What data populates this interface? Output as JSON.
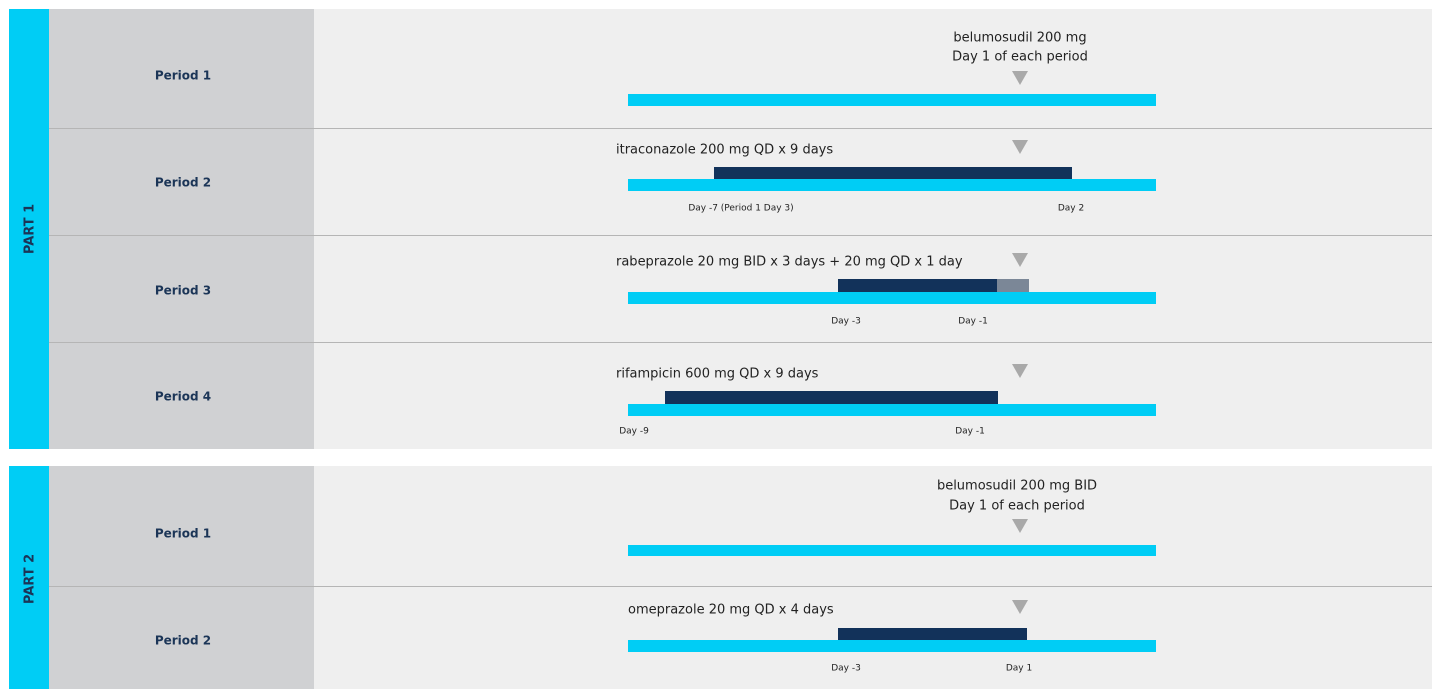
{
  "parts": [
    {
      "label": "PART 1",
      "periods": [
        {
          "label": "Period 1",
          "notes": [
            "belumosudil 200 mg",
            "Day 1 of each period"
          ],
          "day_labels": []
        },
        {
          "label": "Period 2",
          "notes": [
            "itraconazole 200 mg QD x 9 days"
          ],
          "day_labels": [
            "Day -7 (Period 1 Day 3)",
            "Day 2"
          ]
        },
        {
          "label": "Period 3",
          "notes": [
            "rabeprazole 20 mg BID x 3 days + 20 mg QD x 1 day"
          ],
          "day_labels": [
            "Day -3",
            "Day -1"
          ]
        },
        {
          "label": "Period 4",
          "notes": [
            "rifampicin 600 mg QD x 9 days"
          ],
          "day_labels": [
            "Day -9",
            "Day -1"
          ]
        }
      ]
    },
    {
      "label": "PART 2",
      "periods": [
        {
          "label": "Period 1",
          "notes": [
            "belumosudil 200 mg BID",
            "Day 1 of each period"
          ],
          "day_labels": []
        },
        {
          "label": "Period 2",
          "notes": [
            "omeprazole 20 mg QD x 4 days"
          ],
          "day_labels": [
            "Day -3",
            "Day 1"
          ]
        }
      ]
    }
  ]
}
